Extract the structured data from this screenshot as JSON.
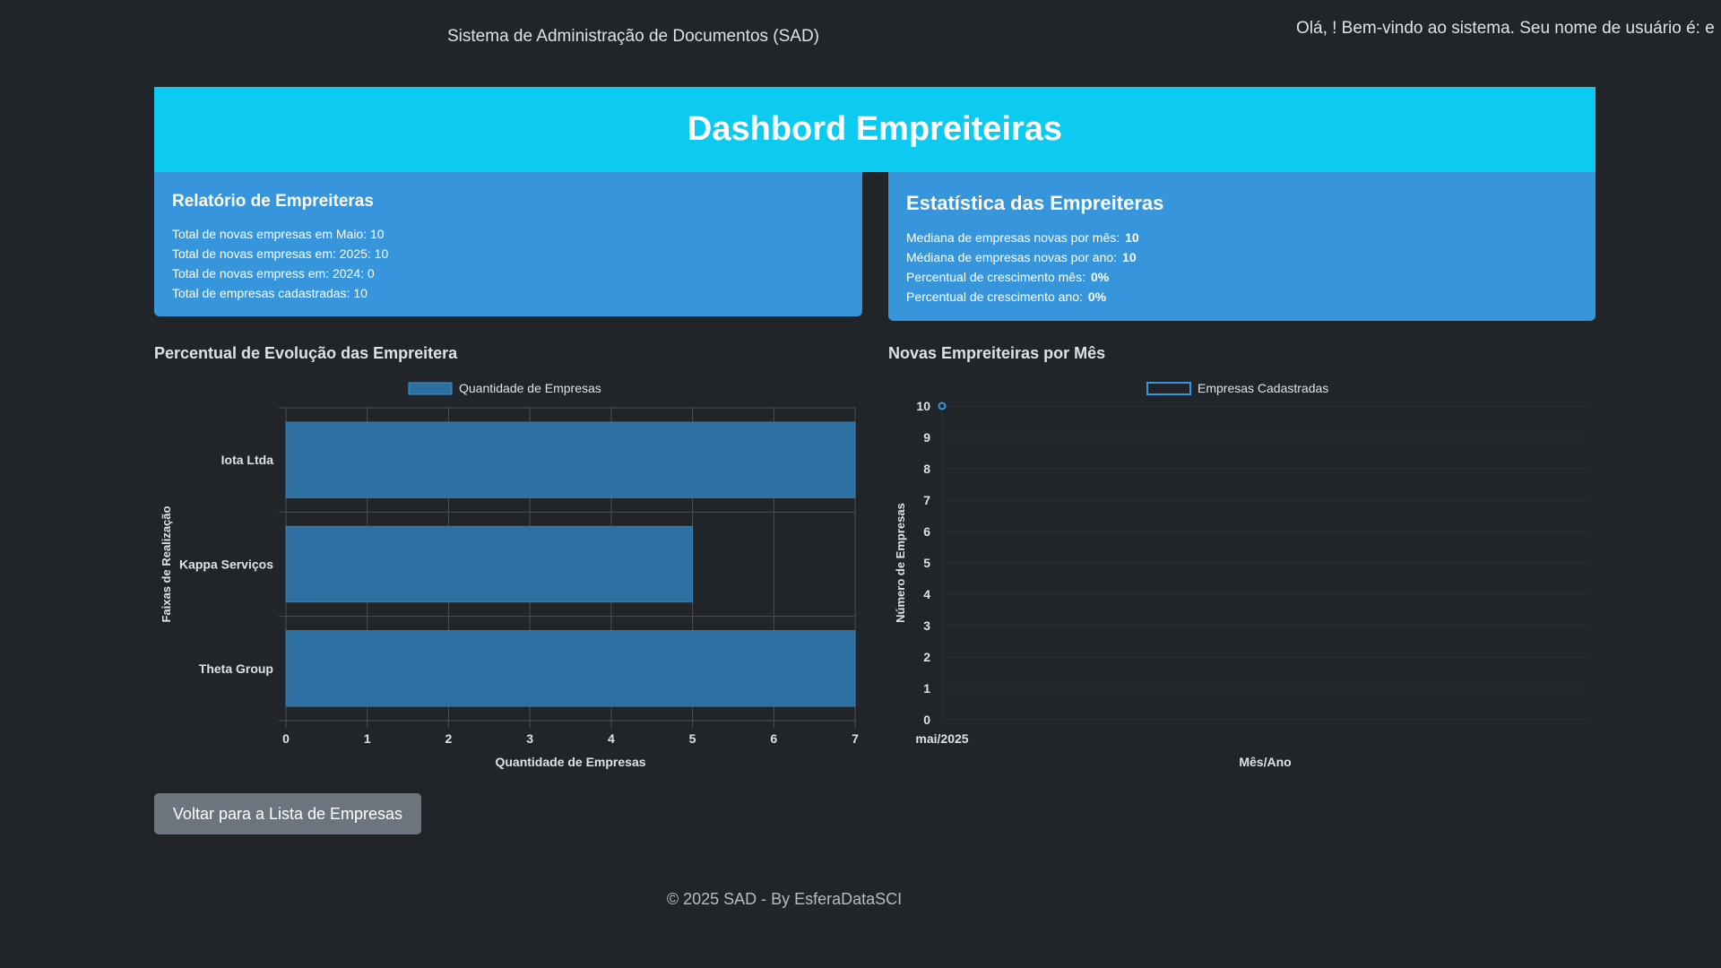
{
  "header": {
    "system_title": "Sistema de Administração de Documentos (SAD)",
    "greeting": "Olá, ! Bem-vindo ao sistema.   Seu nome de usuário é: e"
  },
  "banner": {
    "title": "Dashbord Empreiteiras"
  },
  "report": {
    "title": "Relatório de Empreiteras",
    "lines": [
      "Total de novas empresas em Maio: 10",
      "Total de novas empresas em: 2025: 10",
      "Total de novas empress em: 2024: 0",
      "Total de empresas cadastradas: 10"
    ]
  },
  "stats": {
    "title": "Estatística das Empreiteras",
    "items": [
      {
        "label": "Mediana de empresas novas por mês:",
        "value": "10"
      },
      {
        "label": "Médiana de empresas novas por ano:",
        "value": "10"
      },
      {
        "label": "Percentual de crescimento mês:",
        "value": "0%"
      },
      {
        "label": "Percentual de crescimento ano:",
        "value": "0%"
      }
    ]
  },
  "chart_left_title": "Percentual de Evolução das Empreitera",
  "chart_right_title": "Novas Empreiteiras por Mês",
  "chart_data": [
    {
      "type": "bar",
      "orientation": "horizontal",
      "categories": [
        "Iota Ltda",
        "Kappa Serviços",
        "Theta Group"
      ],
      "series": [
        {
          "name": "Quantidade de Empresas",
          "values": [
            7,
            5,
            7
          ]
        }
      ],
      "xlabel": "Quantidade de Empresas",
      "ylabel": "Faixas de Realização",
      "xlim": [
        0,
        7
      ],
      "x_ticks": [
        "0",
        "1",
        "2",
        "3",
        "4",
        "5",
        "6",
        "7"
      ],
      "grid": true,
      "legend": "top-center",
      "color": "#2c6fa0"
    },
    {
      "type": "line",
      "categories": [
        "mai/2025"
      ],
      "series": [
        {
          "name": "Empresas Cadastradas",
          "values": [
            10
          ]
        }
      ],
      "xlabel": "Mês/Ano",
      "ylabel": "Número de Empresas",
      "ylim": [
        0,
        10
      ],
      "y_ticks": [
        "0",
        "1",
        "2",
        "3",
        "4",
        "5",
        "6",
        "7",
        "8",
        "9",
        "10"
      ],
      "grid": true,
      "legend": "top-center",
      "color": "#3796db"
    }
  ],
  "back_button": {
    "label": "Voltar para a Lista de Empresas"
  },
  "footer": {
    "text": "© 2025 SAD - By EsferaDataSCI"
  }
}
